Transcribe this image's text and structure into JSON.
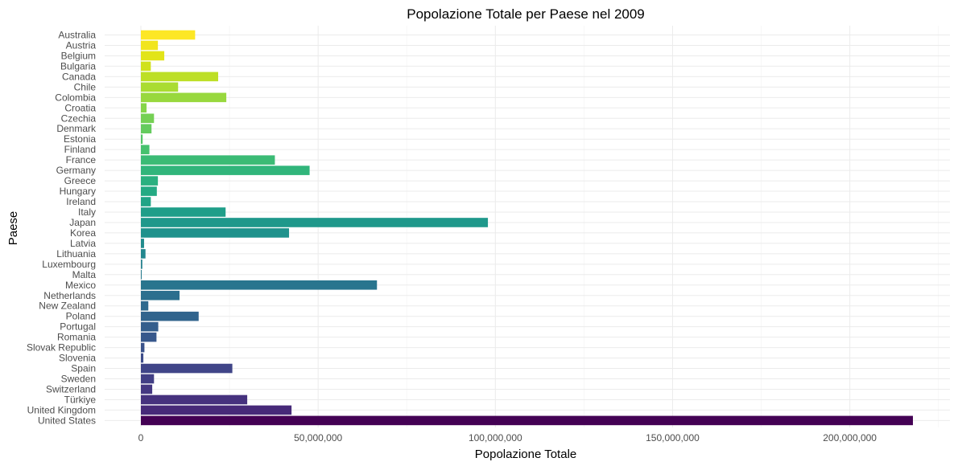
{
  "chart_data": {
    "type": "bar",
    "orientation": "horizontal",
    "title": "Popolazione Totale per Paese nel 2009",
    "xlabel": "Popolazione Totale",
    "ylabel": "Paese",
    "xlim": [
      0,
      222000000
    ],
    "x_ticks": [
      0,
      50000000,
      100000000,
      150000000,
      200000000
    ],
    "x_tick_labels": [
      "0",
      "50,000,000",
      "100,000,000",
      "150,000,000",
      "200,000,000"
    ],
    "grid": true,
    "legend": "none",
    "color_scale": "viridis",
    "categories": [
      "Australia",
      "Austria",
      "Belgium",
      "Bulgaria",
      "Canada",
      "Chile",
      "Colombia",
      "Croatia",
      "Czechia",
      "Denmark",
      "Estonia",
      "Finland",
      "France",
      "Germany",
      "Greece",
      "Hungary",
      "Ireland",
      "Italy",
      "Japan",
      "Korea",
      "Latvia",
      "Lithuania",
      "Luxembourg",
      "Malta",
      "Mexico",
      "Netherlands",
      "New Zealand",
      "Poland",
      "Portugal",
      "Romania",
      "Slovak Republic",
      "Slovenia",
      "Spain",
      "Sweden",
      "Switzerland",
      "Türkiye",
      "United Kingdom",
      "United States"
    ],
    "values": [
      15300000,
      4800000,
      6600000,
      2800000,
      21800000,
      10500000,
      24100000,
      1600000,
      3700000,
      3000000,
      500000,
      2400000,
      37800000,
      47600000,
      4800000,
      4500000,
      2800000,
      23900000,
      97900000,
      41800000,
      900000,
      1300000,
      400000,
      200000,
      66600000,
      10900000,
      2100000,
      16300000,
      4900000,
      4400000,
      1000000,
      700000,
      25800000,
      3700000,
      3200000,
      30000000,
      42500000,
      217800000
    ],
    "colors": [
      "#fde725",
      "#f1e51d",
      "#e2e418",
      "#d0e11c",
      "#bddf26",
      "#aadc32",
      "#98d83e",
      "#86d549",
      "#75d054",
      "#65cb5e",
      "#55c667",
      "#47c16e",
      "#3bbb75",
      "#31b57b",
      "#2ab07f",
      "#24aa83",
      "#20a486",
      "#1f9e89",
      "#1f988b",
      "#1f928c",
      "#218c8d",
      "#23878e",
      "#25818e",
      "#277b8e",
      "#29758e",
      "#2c6f8e",
      "#2e6a8e",
      "#31648d",
      "#345e8d",
      "#37588c",
      "#3a528b",
      "#3d4c8a",
      "#404588",
      "#423f85",
      "#453882",
      "#46327e",
      "#472a79",
      "#440154"
    ]
  }
}
